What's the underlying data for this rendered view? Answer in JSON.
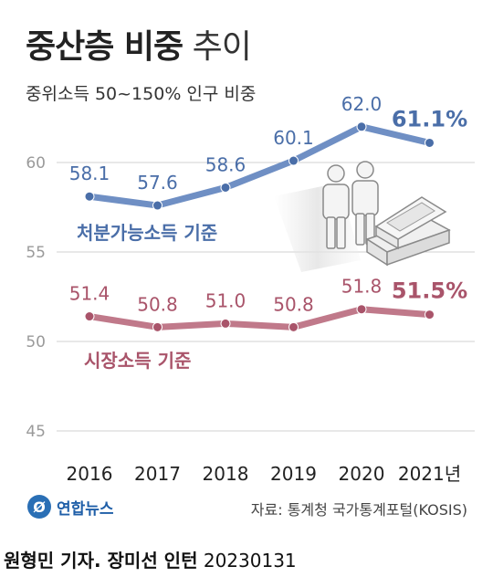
{
  "title": {
    "bold": "중산층 비중",
    "light": "추이"
  },
  "subtitle": "중위소득 50~150% 인구 비중",
  "source": "자료: 통계청 국가통계포털(KOSIS)",
  "logo": {
    "text": "연합뉴스"
  },
  "credit": {
    "names": "원형민 기자. 장미선 인턴",
    "date": "20230131"
  },
  "colors": {
    "blue": "#6f8fc4",
    "blue_text": "#4a6ea8",
    "red": "#c0798a",
    "red_text": "#a9546a",
    "grid": "#d0d0d0"
  },
  "chart_data": {
    "type": "line",
    "x": [
      "2016",
      "2017",
      "2018",
      "2019",
      "2020",
      "2021년"
    ],
    "ylim": [
      45,
      65
    ],
    "yticks": [
      "45",
      "50",
      "55",
      "60"
    ],
    "series": [
      {
        "name": "처분가능소득 기준",
        "values": [
          58.1,
          57.6,
          58.6,
          60.1,
          62.0,
          61.1
        ],
        "labels": [
          "58.1",
          "57.6",
          "58.6",
          "60.1",
          "62.0",
          "61.1%"
        ]
      },
      {
        "name": "시장소득 기준",
        "values": [
          51.4,
          50.8,
          51.0,
          50.8,
          51.8,
          51.5
        ],
        "labels": [
          "51.4",
          "50.8",
          "51.0",
          "50.8",
          "51.8",
          "51.5%"
        ]
      }
    ]
  }
}
